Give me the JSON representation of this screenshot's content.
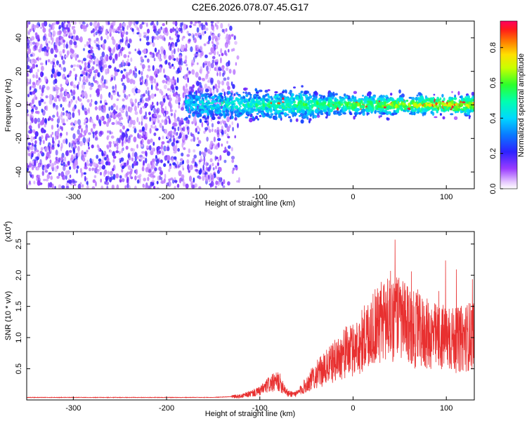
{
  "title": "C2E6.2026.078.07.45.G17",
  "chart_data": [
    {
      "type": "heatmap",
      "name": "spectrogram",
      "xlabel": "Height of straight line (km)",
      "ylabel": "Frequency (Hz)",
      "xlim": [
        -350,
        130
      ],
      "ylim": [
        -50,
        50
      ],
      "xticks": [
        -300,
        -200,
        -100,
        0,
        100
      ],
      "yticks": [
        -40,
        -20,
        0,
        20,
        40
      ],
      "grid": false,
      "noise_region_km": [
        -350,
        -130
      ],
      "signal_band": {
        "x_start_km": -180,
        "x_end_km": 130,
        "center_hz": 0,
        "half_width_hz": 6
      },
      "colorbar": {
        "label": "Normalized spectral amplitude",
        "range": [
          0.0,
          0.95
        ],
        "ticks": [
          0.0,
          0.2,
          0.4,
          0.6,
          0.8
        ]
      }
    },
    {
      "type": "line",
      "name": "snr",
      "xlabel": "Height of straight line (km)",
      "ylabel": "SNR (10 * v/v)",
      "y_scale_label": "(x10",
      "y_scale_exponent": "4",
      "xlim": [
        -350,
        130
      ],
      "ylim": [
        0,
        2.7
      ],
      "xticks": [
        -300,
        -200,
        -100,
        0,
        100
      ],
      "yticks": [
        0.5,
        1.0,
        1.5,
        2.0,
        2.5
      ],
      "ytick_labels": [
        "0.5",
        "1.0",
        "1.5",
        "2.0",
        "2.5"
      ],
      "color": "#e83030",
      "series": [
        {
          "name": "SNR",
          "x": [
            -350,
            -300,
            -250,
            -200,
            -150,
            -120,
            -100,
            -90,
            -80,
            -75,
            -70,
            -60,
            -50,
            -40,
            -30,
            -20,
            -10,
            0,
            10,
            20,
            30,
            40,
            50,
            60,
            70,
            80,
            90,
            100,
            110,
            120,
            130
          ],
          "y": [
            0.04,
            0.04,
            0.04,
            0.04,
            0.04,
            0.06,
            0.14,
            0.25,
            0.3,
            0.22,
            0.1,
            0.1,
            0.25,
            0.4,
            0.5,
            0.62,
            0.75,
            0.8,
            0.95,
            1.15,
            1.25,
            1.35,
            1.3,
            1.15,
            1.1,
            1.05,
            1.0,
            1.0,
            0.95,
            1.0,
            1.05
          ]
        }
      ]
    }
  ]
}
